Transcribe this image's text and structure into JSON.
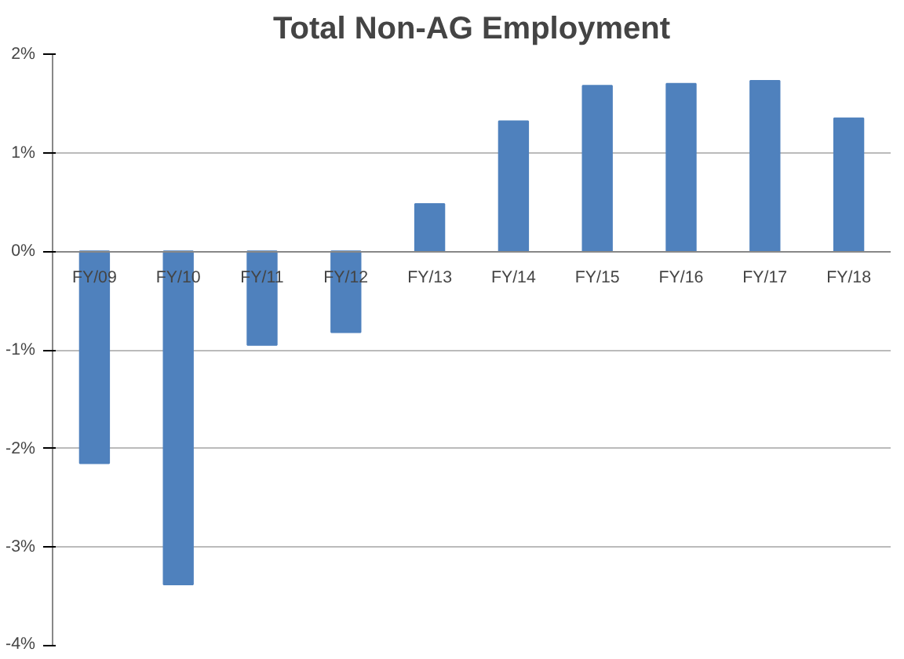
{
  "chart_data": {
    "type": "bar",
    "title": "Total Non-AG Employment",
    "categories": [
      "FY/09",
      "FY/10",
      "FY/11",
      "FY/12",
      "FY/13",
      "FY/14",
      "FY/15",
      "FY/16",
      "FY/17",
      "FY/18"
    ],
    "values": [
      -2.15,
      -3.38,
      -0.95,
      -0.82,
      0.48,
      1.32,
      1.68,
      1.7,
      1.73,
      1.35
    ],
    "color": "#4f81bd",
    "ylim": [
      -4,
      2
    ],
    "yticks": [
      {
        "value": -4,
        "label": "-4%"
      },
      {
        "value": -3,
        "label": "-3%"
      },
      {
        "value": -2,
        "label": "-2%"
      },
      {
        "value": -1,
        "label": "-1%"
      },
      {
        "value": 0,
        "label": "0%"
      },
      {
        "value": 1,
        "label": "1%"
      },
      {
        "value": 2,
        "label": "2%"
      }
    ],
    "grid": "y"
  }
}
